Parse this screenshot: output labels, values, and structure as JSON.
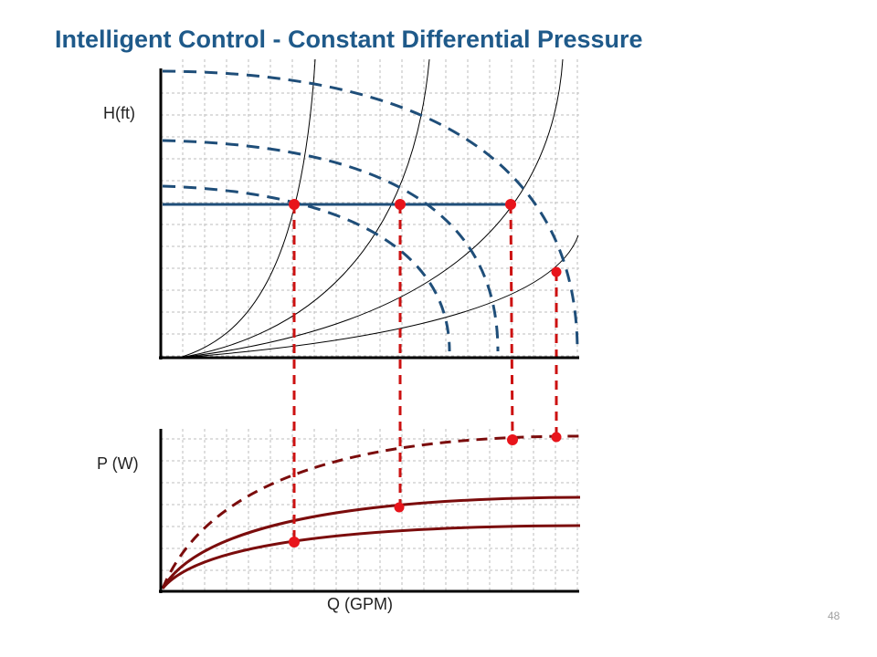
{
  "title": "Intelligent Control - Constant Differential Pressure",
  "head_axis_label": "H(ft)",
  "power_axis_label": "P (W)",
  "flow_axis_label": "Q (GPM)",
  "page_number": "48",
  "colors": {
    "title": "#1f5a8a",
    "pump_curve": "#1f4e79",
    "setpoint_line": "#1f4e79",
    "system_curve": "#000000",
    "operating_point": "#e8141b",
    "drop_line": "#cc1111",
    "power_curve": "#7b0c0c",
    "grid": "#bdbdbd",
    "axis": "#000000"
  }
}
